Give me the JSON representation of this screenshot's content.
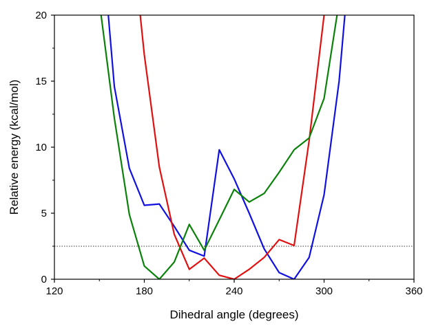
{
  "chart_data": {
    "type": "line",
    "xlabel": "Dihedral angle (degrees)",
    "ylabel": "Relative energy (kcal/mol)",
    "xlim": [
      120,
      360
    ],
    "ylim": [
      0,
      20
    ],
    "x_ticks": [
      120,
      180,
      240,
      300,
      360
    ],
    "x_tick_labels": [
      "120",
      "180",
      "240",
      "300",
      "360"
    ],
    "y_ticks": [
      0,
      5,
      10,
      15,
      20
    ],
    "y_tick_labels": [
      "0",
      "5",
      "10",
      "15",
      "20"
    ],
    "grid": false,
    "frame": "box",
    "reference_line": {
      "y": 2.5,
      "style": "dotted",
      "color": "#333333"
    },
    "series": [
      {
        "color": "#1010e0",
        "x": [
          150,
          160,
          170,
          180,
          190,
          200,
          210,
          220,
          230,
          240,
          250,
          260,
          270,
          280,
          290,
          300,
          310,
          320
        ],
        "y": [
          28,
          14.6,
          8.4,
          5.6,
          5.7,
          4.0,
          2.2,
          1.75,
          9.8,
          7.6,
          5.0,
          2.3,
          0.5,
          0.0,
          1.65,
          6.4,
          15.0,
          28
        ]
      },
      {
        "color": "#e01010",
        "x": [
          170,
          180,
          190,
          200,
          210,
          220,
          230,
          240,
          250,
          260,
          270,
          280,
          290,
          300,
          310
        ],
        "y": [
          28,
          17.0,
          8.5,
          3.4,
          0.75,
          1.6,
          0.3,
          0.0,
          0.75,
          1.65,
          3.0,
          2.55,
          10.5,
          20,
          28
        ]
      },
      {
        "color": "#0a820a",
        "x": [
          150,
          160,
          170,
          180,
          190,
          200,
          210,
          220,
          230,
          240,
          250,
          260,
          270,
          280,
          290,
          300,
          310
        ],
        "y": [
          21,
          12.2,
          4.9,
          1.0,
          0.0,
          1.3,
          4.15,
          2.2,
          4.5,
          6.8,
          5.85,
          6.5,
          8.1,
          9.8,
          10.7,
          13.7,
          21
        ]
      }
    ]
  }
}
